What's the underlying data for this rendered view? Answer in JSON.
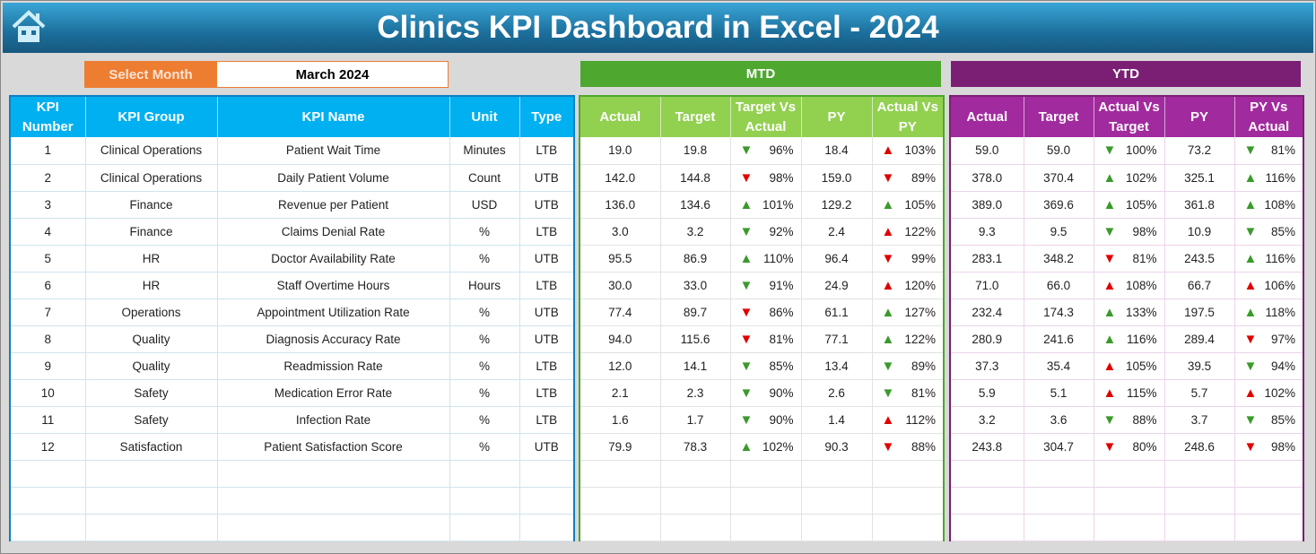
{
  "title": "Clinics KPI Dashboard in Excel - 2024",
  "icons": {
    "home": "home-icon"
  },
  "colors": {
    "kpi_header": "#00b0f0",
    "mtd": "#4ea72e",
    "ytd": "#7a1f74",
    "select": "#ed7d31",
    "up_good": "#3a9a2b",
    "bad": "#e00000"
  },
  "select_month": {
    "label": "Select Month",
    "value": "March 2024"
  },
  "sections": {
    "mtd": "MTD",
    "ytd": "YTD"
  },
  "kpi_headers": [
    "KPI Number",
    "KPI Group",
    "KPI Name",
    "Unit",
    "Type"
  ],
  "mtd_headers": [
    "Actual",
    "Target",
    "Target Vs Actual",
    "PY",
    "Actual Vs PY"
  ],
  "ytd_headers": [
    "Actual",
    "Target",
    "Actual Vs Target",
    "PY",
    "PY Vs Actual"
  ],
  "rows": [
    {
      "num": "1",
      "group": "Clinical Operations",
      "name": "Patient Wait Time",
      "unit": "Minutes",
      "type": "LTB",
      "mtd": {
        "actual": "19.0",
        "target": "19.8",
        "tva": "96%",
        "tva_ind": "down-green",
        "py": "18.4",
        "avp": "103%",
        "avp_ind": "up-red"
      },
      "ytd": {
        "actual": "59.0",
        "target": "59.0",
        "avt": "100%",
        "avt_ind": "down-green",
        "py": "73.2",
        "pva": "81%",
        "pva_ind": "down-green"
      }
    },
    {
      "num": "2",
      "group": "Clinical Operations",
      "name": "Daily Patient Volume",
      "unit": "Count",
      "type": "UTB",
      "mtd": {
        "actual": "142.0",
        "target": "144.8",
        "tva": "98%",
        "tva_ind": "down-red",
        "py": "159.0",
        "avp": "89%",
        "avp_ind": "down-red"
      },
      "ytd": {
        "actual": "378.0",
        "target": "370.4",
        "avt": "102%",
        "avt_ind": "up-green",
        "py": "325.1",
        "pva": "116%",
        "pva_ind": "up-green"
      }
    },
    {
      "num": "3",
      "group": "Finance",
      "name": "Revenue per Patient",
      "unit": "USD",
      "type": "UTB",
      "mtd": {
        "actual": "136.0",
        "target": "134.6",
        "tva": "101%",
        "tva_ind": "up-green",
        "py": "129.2",
        "avp": "105%",
        "avp_ind": "up-green"
      },
      "ytd": {
        "actual": "389.0",
        "target": "369.6",
        "avt": "105%",
        "avt_ind": "up-green",
        "py": "361.8",
        "pva": "108%",
        "pva_ind": "up-green"
      }
    },
    {
      "num": "4",
      "group": "Finance",
      "name": "Claims Denial Rate",
      "unit": "%",
      "type": "LTB",
      "mtd": {
        "actual": "3.0",
        "target": "3.2",
        "tva": "92%",
        "tva_ind": "down-green",
        "py": "2.4",
        "avp": "122%",
        "avp_ind": "up-red"
      },
      "ytd": {
        "actual": "9.3",
        "target": "9.5",
        "avt": "98%",
        "avt_ind": "down-green",
        "py": "10.9",
        "pva": "85%",
        "pva_ind": "down-green"
      }
    },
    {
      "num": "5",
      "group": "HR",
      "name": "Doctor Availability Rate",
      "unit": "%",
      "type": "UTB",
      "mtd": {
        "actual": "95.5",
        "target": "86.9",
        "tva": "110%",
        "tva_ind": "up-green",
        "py": "96.4",
        "avp": "99%",
        "avp_ind": "down-red"
      },
      "ytd": {
        "actual": "283.1",
        "target": "348.2",
        "avt": "81%",
        "avt_ind": "down-red",
        "py": "243.5",
        "pva": "116%",
        "pva_ind": "up-green"
      }
    },
    {
      "num": "6",
      "group": "HR",
      "name": "Staff Overtime Hours",
      "unit": "Hours",
      "type": "LTB",
      "mtd": {
        "actual": "30.0",
        "target": "33.0",
        "tva": "91%",
        "tva_ind": "down-green",
        "py": "24.9",
        "avp": "120%",
        "avp_ind": "up-red"
      },
      "ytd": {
        "actual": "71.0",
        "target": "66.0",
        "avt": "108%",
        "avt_ind": "up-red",
        "py": "66.7",
        "pva": "106%",
        "pva_ind": "up-red"
      }
    },
    {
      "num": "7",
      "group": "Operations",
      "name": "Appointment Utilization Rate",
      "unit": "%",
      "type": "UTB",
      "mtd": {
        "actual": "77.4",
        "target": "89.7",
        "tva": "86%",
        "tva_ind": "down-red",
        "py": "61.1",
        "avp": "127%",
        "avp_ind": "up-green"
      },
      "ytd": {
        "actual": "232.4",
        "target": "174.3",
        "avt": "133%",
        "avt_ind": "up-green",
        "py": "197.5",
        "pva": "118%",
        "pva_ind": "up-green"
      }
    },
    {
      "num": "8",
      "group": "Quality",
      "name": "Diagnosis Accuracy Rate",
      "unit": "%",
      "type": "UTB",
      "mtd": {
        "actual": "94.0",
        "target": "115.6",
        "tva": "81%",
        "tva_ind": "down-red",
        "py": "77.1",
        "avp": "122%",
        "avp_ind": "up-green"
      },
      "ytd": {
        "actual": "280.9",
        "target": "241.6",
        "avt": "116%",
        "avt_ind": "up-green",
        "py": "289.4",
        "pva": "97%",
        "pva_ind": "down-red"
      }
    },
    {
      "num": "9",
      "group": "Quality",
      "name": "Readmission Rate",
      "unit": "%",
      "type": "LTB",
      "mtd": {
        "actual": "12.0",
        "target": "14.1",
        "tva": "85%",
        "tva_ind": "down-green",
        "py": "13.4",
        "avp": "89%",
        "avp_ind": "down-green"
      },
      "ytd": {
        "actual": "37.3",
        "target": "35.4",
        "avt": "105%",
        "avt_ind": "up-red",
        "py": "39.5",
        "pva": "94%",
        "pva_ind": "down-green"
      }
    },
    {
      "num": "10",
      "group": "Safety",
      "name": "Medication Error Rate",
      "unit": "%",
      "type": "LTB",
      "mtd": {
        "actual": "2.1",
        "target": "2.3",
        "tva": "90%",
        "tva_ind": "down-green",
        "py": "2.6",
        "avp": "81%",
        "avp_ind": "down-green"
      },
      "ytd": {
        "actual": "5.9",
        "target": "5.1",
        "avt": "115%",
        "avt_ind": "up-red",
        "py": "5.7",
        "pva": "102%",
        "pva_ind": "up-red"
      }
    },
    {
      "num": "11",
      "group": "Safety",
      "name": "Infection Rate",
      "unit": "%",
      "type": "LTB",
      "mtd": {
        "actual": "1.6",
        "target": "1.7",
        "tva": "90%",
        "tva_ind": "down-green",
        "py": "1.4",
        "avp": "112%",
        "avp_ind": "up-red"
      },
      "ytd": {
        "actual": "3.2",
        "target": "3.6",
        "avt": "88%",
        "avt_ind": "down-green",
        "py": "3.7",
        "pva": "85%",
        "pva_ind": "down-green"
      }
    },
    {
      "num": "12",
      "group": "Satisfaction",
      "name": "Patient Satisfaction Score",
      "unit": "%",
      "type": "UTB",
      "mtd": {
        "actual": "79.9",
        "target": "78.3",
        "tva": "102%",
        "tva_ind": "up-green",
        "py": "90.3",
        "avp": "88%",
        "avp_ind": "down-red"
      },
      "ytd": {
        "actual": "243.8",
        "target": "304.7",
        "avt": "80%",
        "avt_ind": "down-red",
        "py": "248.6",
        "pva": "98%",
        "pva_ind": "down-red"
      }
    }
  ]
}
